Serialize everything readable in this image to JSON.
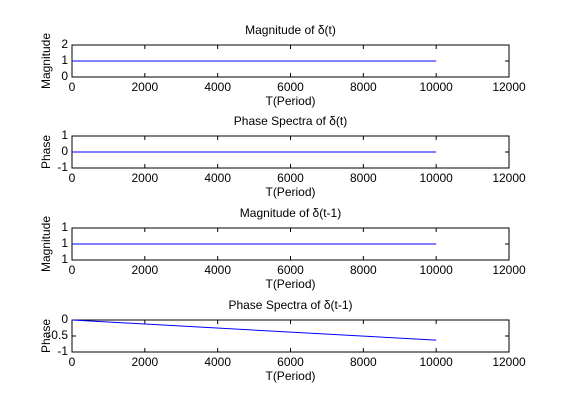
{
  "chart_data": [
    {
      "type": "line",
      "title": "Magnitude of δ(t)",
      "xlabel": "T(Period)",
      "ylabel": "Magnitude",
      "x": [
        0,
        10000
      ],
      "values": [
        1,
        1
      ],
      "color": "#0000ff",
      "xlim": [
        0,
        12000
      ],
      "xticks": [
        0,
        2000,
        4000,
        6000,
        8000,
        10000,
        12000
      ],
      "ylim": [
        0,
        2
      ],
      "yticks": [
        0,
        1,
        2
      ]
    },
    {
      "type": "line",
      "title": "Phase Spectra of δ(t)",
      "xlabel": "T(Period)",
      "ylabel": "Phase",
      "x": [
        0,
        10000
      ],
      "values": [
        0,
        0
      ],
      "color": "#0000ff",
      "xlim": [
        0,
        12000
      ],
      "xticks": [
        0,
        2000,
        4000,
        6000,
        8000,
        10000,
        12000
      ],
      "ylim": [
        -1,
        1
      ],
      "yticks": [
        -1,
        0,
        1
      ]
    },
    {
      "type": "line",
      "title": "Magnitude of δ(t-1)",
      "xlabel": "T(Period)",
      "ylabel": "Magnitude",
      "x": [
        0,
        10000
      ],
      "values": [
        1,
        1
      ],
      "color": "#0000ff",
      "xlim": [
        0,
        12000
      ],
      "xticks": [
        0,
        2000,
        4000,
        6000,
        8000,
        10000,
        12000
      ],
      "ylim": [
        0.999,
        1.001
      ],
      "yticks": [
        {
          "value": 0.999,
          "label": "1"
        },
        1,
        {
          "value": 1.001,
          "label": "1"
        }
      ]
    },
    {
      "type": "line",
      "title": "Phase Spectra of δ(t-1)",
      "xlabel": "T(Period)",
      "ylabel": "Phase",
      "x": [
        0,
        10000
      ],
      "values": [
        0,
        -0.63
      ],
      "color": "#0000ff",
      "xlim": [
        0,
        12000
      ],
      "xticks": [
        0,
        2000,
        4000,
        6000,
        8000,
        10000,
        12000
      ],
      "ylim": [
        -1,
        0
      ],
      "yticks": [
        -1,
        -0.5,
        0
      ]
    }
  ]
}
